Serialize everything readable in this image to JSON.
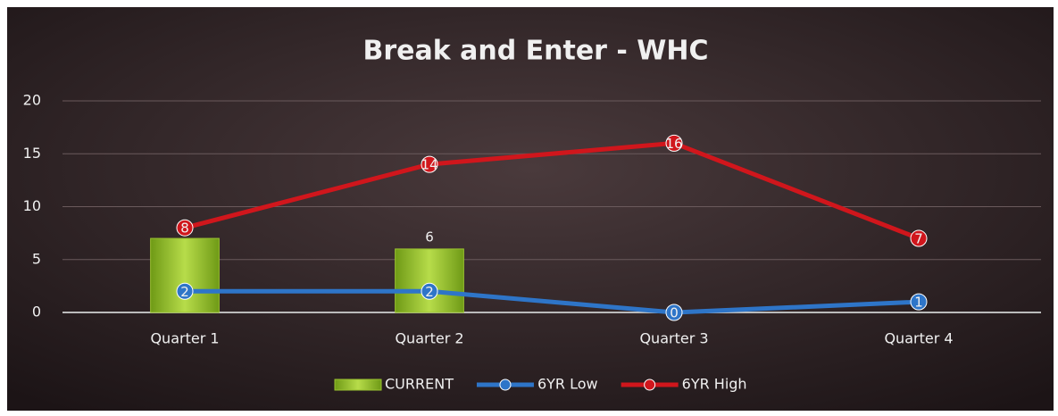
{
  "chart_data": {
    "type": "combo",
    "title": "Break and Enter - WHC",
    "categories": [
      "Quarter 1",
      "Quarter 2",
      "Quarter 3",
      "Quarter 4"
    ],
    "series": [
      {
        "name": "CURRENT",
        "type": "bar",
        "color": "#9ac230",
        "values": [
          7,
          6,
          null,
          null
        ]
      },
      {
        "name": "6YR Low",
        "type": "line",
        "color": "#2e75c8",
        "values": [
          2,
          2,
          0,
          1
        ]
      },
      {
        "name": "6YR High",
        "type": "line",
        "color": "#d0161c",
        "values": [
          8,
          14,
          16,
          7
        ]
      }
    ],
    "ylim": [
      0,
      20
    ],
    "yticks": [
      0,
      5,
      10,
      15,
      20
    ],
    "grid": true,
    "legend": "bottom"
  }
}
